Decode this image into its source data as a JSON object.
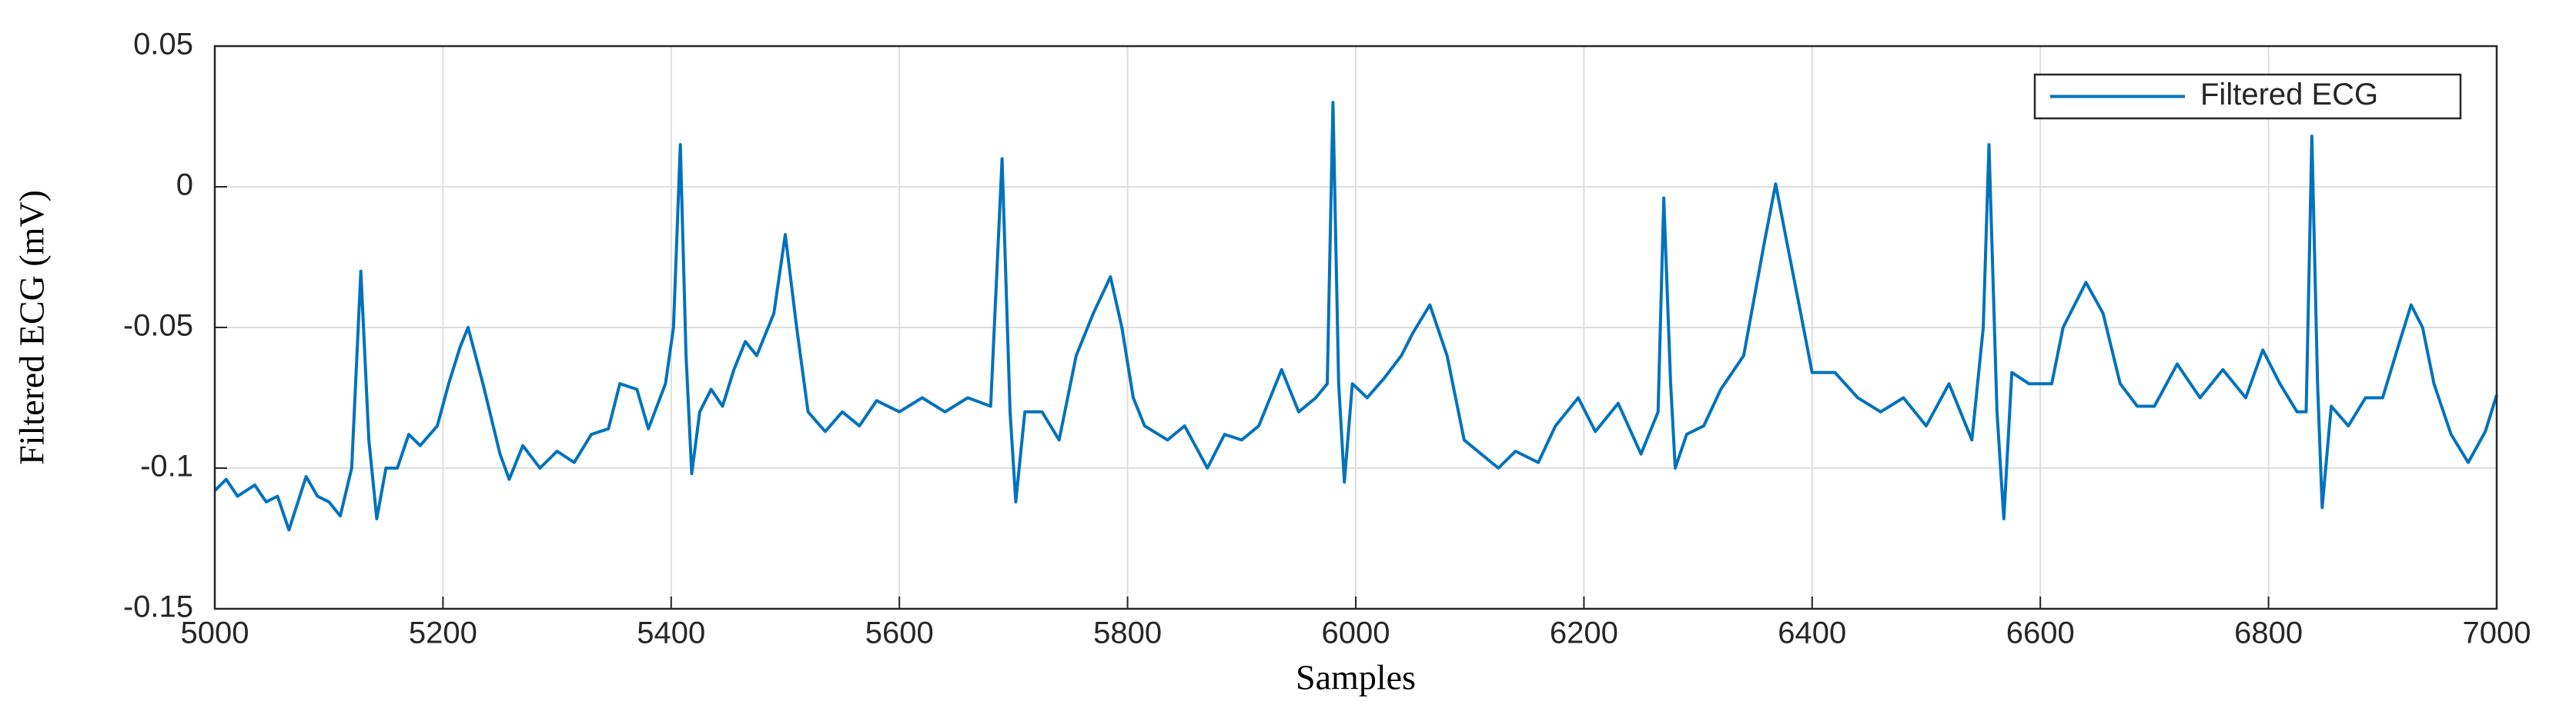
{
  "chart_data": {
    "type": "line",
    "xlabel": "Samples",
    "ylabel": "Filtered ECG (mV)",
    "xlim": [
      5000,
      7000
    ],
    "ylim": [
      -0.15,
      0.05
    ],
    "xticks": [
      5000,
      5200,
      5400,
      5600,
      5800,
      6000,
      6200,
      6400,
      6600,
      6800,
      7000
    ],
    "yticks": [
      -0.15,
      -0.1,
      -0.05,
      0,
      0.05
    ],
    "grid": true,
    "legend": "upper right",
    "x": [
      5000,
      5010,
      5020,
      5035,
      5045,
      5055,
      5065,
      5080,
      5090,
      5100,
      5110,
      5120,
      5128,
      5135,
      5142,
      5150,
      5160,
      5170,
      5180,
      5195,
      5205,
      5215,
      5222,
      5235,
      5250,
      5258,
      5270,
      5285,
      5300,
      5315,
      5330,
      5345,
      5355,
      5370,
      5380,
      5395,
      5402,
      5408,
      5413,
      5418,
      5425,
      5435,
      5445,
      5455,
      5465,
      5475,
      5490,
      5500,
      5510,
      5520,
      5535,
      5550,
      5565,
      5580,
      5600,
      5620,
      5640,
      5660,
      5680,
      5690,
      5697,
      5702,
      5710,
      5725,
      5740,
      5755,
      5770,
      5785,
      5795,
      5805,
      5815,
      5835,
      5850,
      5870,
      5885,
      5900,
      5915,
      5935,
      5950,
      5965,
      5975,
      5980,
      5985,
      5990,
      5997,
      6010,
      6025,
      6040,
      6050,
      6065,
      6080,
      6095,
      6110,
      6125,
      6140,
      6160,
      6175,
      6195,
      6210,
      6230,
      6250,
      6265,
      6270,
      6276,
      6280,
      6290,
      6305,
      6320,
      6340,
      6358,
      6368,
      6378,
      6390,
      6400,
      6420,
      6440,
      6460,
      6480,
      6500,
      6520,
      6540,
      6550,
      6555,
      6562,
      6568,
      6575,
      6590,
      6610,
      6620,
      6640,
      6655,
      6670,
      6685,
      6700,
      6720,
      6740,
      6760,
      6780,
      6795,
      6810,
      6825,
      6833,
      6838,
      6843,
      6847,
      6855,
      6870,
      6885,
      6900,
      6915,
      6925,
      6935,
      6945,
      6960,
      6975,
      6990,
      7000
    ],
    "series": [
      {
        "name": "Filtered ECG",
        "color": "#0072bd",
        "values": [
          -0.108,
          -0.104,
          -0.11,
          -0.106,
          -0.112,
          -0.11,
          -0.122,
          -0.103,
          -0.11,
          -0.112,
          -0.117,
          -0.1,
          -0.03,
          -0.09,
          -0.118,
          -0.1,
          -0.1,
          -0.088,
          -0.092,
          -0.085,
          -0.07,
          -0.057,
          -0.05,
          -0.07,
          -0.095,
          -0.104,
          -0.092,
          -0.1,
          -0.094,
          -0.098,
          -0.088,
          -0.086,
          -0.07,
          -0.072,
          -0.086,
          -0.07,
          -0.05,
          0.015,
          -0.06,
          -0.102,
          -0.08,
          -0.072,
          -0.078,
          -0.065,
          -0.055,
          -0.06,
          -0.045,
          -0.017,
          -0.05,
          -0.08,
          -0.087,
          -0.08,
          -0.085,
          -0.076,
          -0.08,
          -0.075,
          -0.08,
          -0.075,
          -0.078,
          0.01,
          -0.08,
          -0.112,
          -0.08,
          -0.08,
          -0.09,
          -0.06,
          -0.045,
          -0.032,
          -0.05,
          -0.075,
          -0.085,
          -0.09,
          -0.085,
          -0.1,
          -0.088,
          -0.09,
          -0.085,
          -0.065,
          -0.08,
          -0.075,
          -0.07,
          0.03,
          -0.07,
          -0.105,
          -0.07,
          -0.075,
          -0.068,
          -0.06,
          -0.052,
          -0.042,
          -0.06,
          -0.09,
          -0.095,
          -0.1,
          -0.094,
          -0.098,
          -0.085,
          -0.075,
          -0.087,
          -0.077,
          -0.095,
          -0.08,
          -0.004,
          -0.07,
          -0.1,
          -0.088,
          -0.085,
          -0.072,
          -0.06,
          -0.02,
          0.001,
          -0.02,
          -0.045,
          -0.066,
          -0.066,
          -0.075,
          -0.08,
          -0.075,
          -0.085,
          -0.07,
          -0.09,
          -0.05,
          0.015,
          -0.08,
          -0.118,
          -0.066,
          -0.07,
          -0.07,
          -0.05,
          -0.034,
          -0.045,
          -0.07,
          -0.078,
          -0.078,
          -0.063,
          -0.075,
          -0.065,
          -0.075,
          -0.058,
          -0.07,
          -0.08,
          -0.08,
          0.018,
          -0.07,
          -0.114,
          -0.078,
          -0.085,
          -0.075,
          -0.075,
          -0.055,
          -0.042,
          -0.05,
          -0.07,
          -0.088,
          -0.098,
          -0.087,
          -0.074
        ]
      }
    ]
  }
}
